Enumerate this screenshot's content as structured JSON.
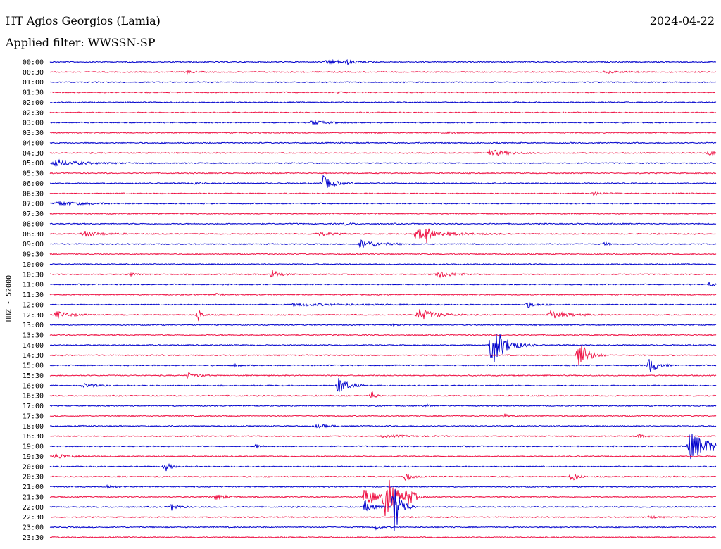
{
  "header": {
    "station": "HT Agios Georgios (Lamia)",
    "date": "2024-04-22",
    "filter": "Applied filter: WWSSN-SP",
    "channel": "HHZ - 52000"
  },
  "colors": {
    "blue": "#0000cc",
    "red": "#ee1144"
  },
  "chart_data": {
    "type": "line",
    "title": "HT Agios Georgios (Lamia)",
    "subtitle": "Applied filter: WWSSN-SP",
    "ylabel": "HHZ - 52000",
    "date": "2024-04-22",
    "row_minutes": 30,
    "row_labels": [
      "00:00",
      "00:30",
      "01:00",
      "01:30",
      "02:00",
      "02:30",
      "03:00",
      "03:30",
      "04:00",
      "04:30",
      "05:00",
      "05:30",
      "06:00",
      "06:30",
      "07:00",
      "07:30",
      "08:00",
      "08:30",
      "09:00",
      "09:30",
      "10:00",
      "10:30",
      "11:00",
      "11:30",
      "12:00",
      "12:30",
      "13:00",
      "13:30",
      "14:00",
      "14:30",
      "15:00",
      "15:30",
      "16:00",
      "16:30",
      "17:00",
      "17:30",
      "18:00",
      "18:30",
      "19:00",
      "19:30",
      "20:00",
      "20:30",
      "21:00",
      "21:30",
      "22:00",
      "22:30",
      "23:00",
      "23:30"
    ],
    "row_colors": [
      "blue",
      "red"
    ],
    "events": [
      {
        "row": 0,
        "minute": 12.5,
        "amp": 0.25,
        "dur": 1.4
      },
      {
        "row": 0,
        "minute": 13.4,
        "amp": 0.2,
        "dur": 0.8
      },
      {
        "row": 1,
        "minute": 6.2,
        "amp": 0.12,
        "dur": 0.6
      },
      {
        "row": 1,
        "minute": 25.0,
        "amp": 0.1,
        "dur": 1.6
      },
      {
        "row": 3,
        "minute": 13.0,
        "amp": 0.07,
        "dur": 0.4
      },
      {
        "row": 6,
        "minute": 11.8,
        "amp": 0.2,
        "dur": 1.4
      },
      {
        "row": 7,
        "minute": 14.5,
        "amp": 0.1,
        "dur": 0.3
      },
      {
        "row": 7,
        "minute": 18.0,
        "amp": 0.1,
        "dur": 0.4
      },
      {
        "row": 9,
        "minute": 19.8,
        "amp": 0.35,
        "dur": 1.5
      },
      {
        "row": 9,
        "minute": 29.7,
        "amp": 0.25,
        "dur": 0.6
      },
      {
        "row": 10,
        "minute": 0.2,
        "amp": 0.3,
        "dur": 2.5
      },
      {
        "row": 12,
        "minute": 6.5,
        "amp": 0.15,
        "dur": 0.6
      },
      {
        "row": 12,
        "minute": 12.3,
        "amp": 0.75,
        "dur": 0.9
      },
      {
        "row": 13,
        "minute": 24.5,
        "amp": 0.15,
        "dur": 0.8
      },
      {
        "row": 14,
        "minute": 0.3,
        "amp": 0.2,
        "dur": 2.5
      },
      {
        "row": 16,
        "minute": 13.3,
        "amp": 0.15,
        "dur": 0.6
      },
      {
        "row": 17,
        "minute": 1.5,
        "amp": 0.3,
        "dur": 1.5
      },
      {
        "row": 17,
        "minute": 12.0,
        "amp": 0.25,
        "dur": 1.2
      },
      {
        "row": 17,
        "minute": 16.5,
        "amp": 0.5,
        "dur": 2.5
      },
      {
        "row": 17,
        "minute": 16.9,
        "amp": 0.9,
        "dur": 0.3
      },
      {
        "row": 18,
        "minute": 14.0,
        "amp": 0.45,
        "dur": 1.5
      },
      {
        "row": 18,
        "minute": 25.0,
        "amp": 0.15,
        "dur": 0.4
      },
      {
        "row": 21,
        "minute": 3.6,
        "amp": 0.2,
        "dur": 0.5
      },
      {
        "row": 21,
        "minute": 10.0,
        "amp": 0.45,
        "dur": 0.7
      },
      {
        "row": 21,
        "minute": 17.5,
        "amp": 0.35,
        "dur": 1.2
      },
      {
        "row": 22,
        "minute": 29.7,
        "amp": 0.3,
        "dur": 0.4
      },
      {
        "row": 23,
        "minute": 7.5,
        "amp": 0.1,
        "dur": 0.5
      },
      {
        "row": 24,
        "minute": 11.0,
        "amp": 0.1,
        "dur": 6.0
      },
      {
        "row": 24,
        "minute": 21.5,
        "amp": 0.25,
        "dur": 0.8
      },
      {
        "row": 25,
        "minute": 0.3,
        "amp": 0.35,
        "dur": 1.2
      },
      {
        "row": 25,
        "minute": 6.7,
        "amp": 0.7,
        "dur": 0.3
      },
      {
        "row": 25,
        "minute": 16.6,
        "amp": 0.6,
        "dur": 1.6
      },
      {
        "row": 25,
        "minute": 22.5,
        "amp": 0.45,
        "dur": 1.5
      },
      {
        "row": 26,
        "minute": 15.5,
        "amp": 0.1,
        "dur": 0.4
      },
      {
        "row": 28,
        "minute": 19.9,
        "amp": 2.2,
        "dur": 1.2
      },
      {
        "row": 29,
        "minute": 23.8,
        "amp": 1.6,
        "dur": 0.8
      },
      {
        "row": 30,
        "minute": 8.4,
        "amp": 0.2,
        "dur": 0.5
      },
      {
        "row": 30,
        "minute": 27.0,
        "amp": 0.8,
        "dur": 0.7
      },
      {
        "row": 31,
        "minute": 6.2,
        "amp": 0.3,
        "dur": 0.8
      },
      {
        "row": 32,
        "minute": 1.5,
        "amp": 0.2,
        "dur": 1.2
      },
      {
        "row": 32,
        "minute": 13.0,
        "amp": 0.9,
        "dur": 0.8
      },
      {
        "row": 33,
        "minute": 14.5,
        "amp": 0.5,
        "dur": 0.3
      },
      {
        "row": 34,
        "minute": 17.0,
        "amp": 0.15,
        "dur": 0.4
      },
      {
        "row": 35,
        "minute": 20.5,
        "amp": 0.2,
        "dur": 0.4
      },
      {
        "row": 36,
        "minute": 12.0,
        "amp": 0.15,
        "dur": 1.5
      },
      {
        "row": 37,
        "minute": 15.0,
        "amp": 0.1,
        "dur": 2.5
      },
      {
        "row": 37,
        "minute": 26.5,
        "amp": 0.15,
        "dur": 0.6
      },
      {
        "row": 38,
        "minute": 28.8,
        "amp": 1.4,
        "dur": 2.1
      },
      {
        "row": 38,
        "minute": 9.3,
        "amp": 0.2,
        "dur": 0.4
      },
      {
        "row": 39,
        "minute": 0.2,
        "amp": 0.25,
        "dur": 1.6
      },
      {
        "row": 40,
        "minute": 5.2,
        "amp": 0.5,
        "dur": 0.4
      },
      {
        "row": 41,
        "minute": 16.0,
        "amp": 0.45,
        "dur": 0.5
      },
      {
        "row": 41,
        "minute": 23.5,
        "amp": 0.55,
        "dur": 0.5
      },
      {
        "row": 42,
        "minute": 2.6,
        "amp": 0.2,
        "dur": 0.7
      },
      {
        "row": 43,
        "minute": 7.5,
        "amp": 0.35,
        "dur": 0.7
      },
      {
        "row": 43,
        "minute": 14.2,
        "amp": 1.1,
        "dur": 1.0
      },
      {
        "row": 43,
        "minute": 15.1,
        "amp": 2.5,
        "dur": 0.9
      },
      {
        "row": 43,
        "minute": 16.1,
        "amp": 0.8,
        "dur": 0.6
      },
      {
        "row": 44,
        "minute": 5.5,
        "amp": 0.4,
        "dur": 0.6
      },
      {
        "row": 44,
        "minute": 14.2,
        "amp": 0.6,
        "dur": 0.7
      },
      {
        "row": 44,
        "minute": 15.5,
        "amp": 3.0,
        "dur": 0.6
      },
      {
        "row": 45,
        "minute": 27.0,
        "amp": 0.15,
        "dur": 0.6
      },
      {
        "row": 46,
        "minute": 14.7,
        "amp": 0.2,
        "dur": 0.4
      }
    ]
  }
}
